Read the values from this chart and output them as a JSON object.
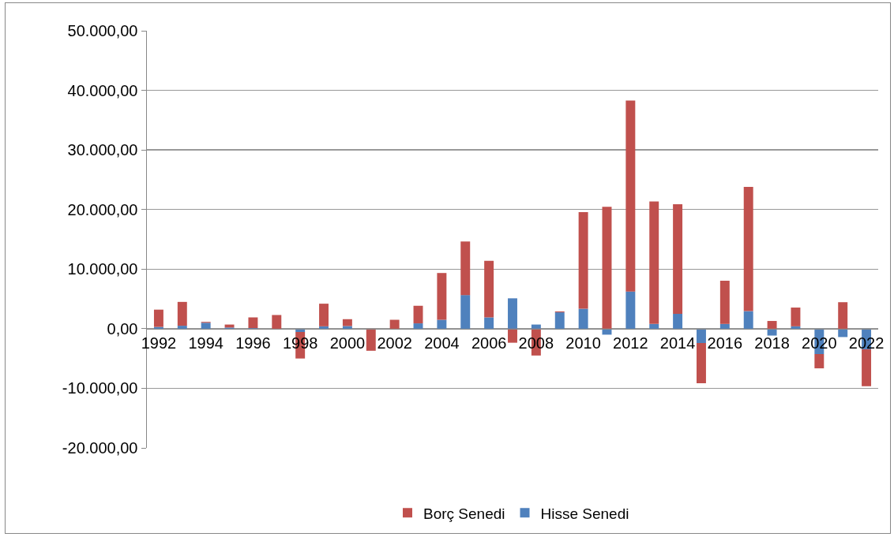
{
  "chart_data": {
    "type": "bar",
    "stacked": true,
    "categories": [
      "1992",
      null,
      "1994",
      null,
      "1996",
      null,
      "1998",
      null,
      "2000",
      null,
      "2002",
      null,
      "2004",
      null,
      "2006",
      null,
      "2008",
      null,
      "2010",
      null,
      "2012",
      null,
      "2014",
      null,
      "2016",
      null,
      "2018",
      null,
      "2020",
      null,
      "2022"
    ],
    "series": [
      {
        "name": "Hisse Senedi",
        "color": "#4f81bd",
        "values": [
          300,
          500,
          1000,
          200,
          100,
          0,
          -550,
          400,
          450,
          0,
          0,
          900,
          1500,
          5650,
          1900,
          5100,
          700,
          2750,
          3350,
          -1000,
          6250,
          800,
          2500,
          -2400,
          800,
          2950,
          -1150,
          400,
          -4250,
          -1400,
          -3450
        ]
      },
      {
        "name": "Borç Senedi",
        "color": "#c0504d",
        "values": [
          2900,
          4000,
          150,
          500,
          1800,
          2300,
          -4450,
          3800,
          1150,
          -3700,
          1500,
          2950,
          7850,
          9000,
          9500,
          -2350,
          -4500,
          150,
          16200,
          20450,
          32050,
          20550,
          18400,
          -6750,
          7250,
          20850,
          1300,
          3150,
          -2400,
          4450,
          -6200
        ]
      }
    ],
    "ylim": [
      -20000,
      50000
    ],
    "yticks": [
      {
        "value": -20000,
        "label": "-20.000,00"
      },
      {
        "value": -10000,
        "label": "-10.000,00"
      },
      {
        "value": 0,
        "label": "0,00"
      },
      {
        "value": 10000,
        "label": "10.000,00"
      },
      {
        "value": 20000,
        "label": "20.000,00"
      },
      {
        "value": 30000,
        "label": "30.000,00"
      },
      {
        "value": 40000,
        "label": "40.000,00"
      },
      {
        "value": 50000,
        "label": "50.000,00"
      }
    ],
    "grid": "y",
    "legend": "bottom"
  }
}
